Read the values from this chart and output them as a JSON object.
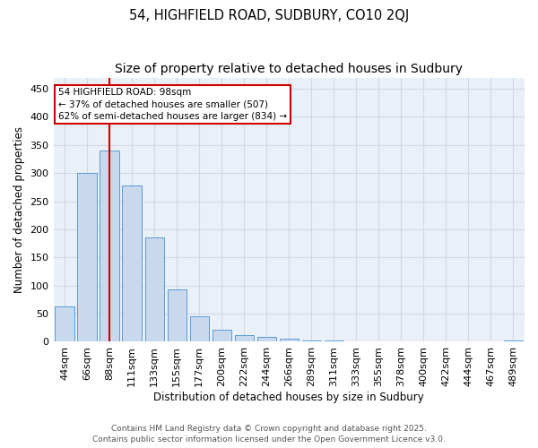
{
  "title1": "54, HIGHFIELD ROAD, SUDBURY, CO10 2QJ",
  "title2": "Size of property relative to detached houses in Sudbury",
  "xlabel": "Distribution of detached houses by size in Sudbury",
  "ylabel": "Number of detached properties",
  "bar_labels": [
    "44sqm",
    "66sqm",
    "88sqm",
    "111sqm",
    "133sqm",
    "155sqm",
    "177sqm",
    "200sqm",
    "222sqm",
    "244sqm",
    "266sqm",
    "289sqm",
    "311sqm",
    "333sqm",
    "355sqm",
    "378sqm",
    "400sqm",
    "422sqm",
    "444sqm",
    "467sqm",
    "489sqm"
  ],
  "bar_values": [
    63,
    300,
    340,
    278,
    185,
    93,
    45,
    22,
    12,
    8,
    5,
    3,
    2,
    1,
    1,
    1,
    0,
    0,
    0,
    0,
    3
  ],
  "bar_color": "#c8d9ee",
  "bar_edge_color": "#5b9bd5",
  "grid_color": "#d0d8e8",
  "bg_color": "#eaf0f8",
  "vline_color": "#cc0000",
  "vline_x": 2.0,
  "annotation_text": "54 HIGHFIELD ROAD: 98sqm\n← 37% of detached houses are smaller (507)\n62% of semi-detached houses are larger (834) →",
  "annotation_box_color": "#cc0000",
  "ylim": [
    0,
    470
  ],
  "yticks": [
    0,
    50,
    100,
    150,
    200,
    250,
    300,
    350,
    400,
    450
  ],
  "footer1": "Contains HM Land Registry data © Crown copyright and database right 2025.",
  "footer2": "Contains public sector information licensed under the Open Government Licence v3.0.",
  "title1_fontsize": 10.5,
  "title2_fontsize": 10,
  "axis_label_fontsize": 8.5,
  "tick_fontsize": 8,
  "annotation_fontsize": 7.5,
  "footer_fontsize": 6.5
}
